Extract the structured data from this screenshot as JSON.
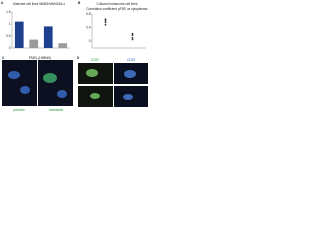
{
  "chart_data": [
    {
      "type": "bar",
      "panel": "A",
      "title": "Matched cell lines WM51/WM4264-4",
      "categories": [
        null,
        null,
        null,
        null
      ],
      "values": [
        1.1,
        0.35,
        0.9,
        0.2
      ],
      "colors": [
        "#1f3f8f",
        "#9a9a9a",
        "#1f3f8f",
        "#9a9a9a"
      ],
      "ylim": [
        0,
        1.5
      ],
      "yticks": [
        0,
        0.5,
        1,
        1.5
      ]
    },
    {
      "type": "scatter",
      "panel": "B",
      "title": "Cultured melanoma cell lines",
      "subtitle": "Correlation coefficient pPDE vs cytoplasmic",
      "x": [
        1,
        1,
        1,
        1,
        2,
        2,
        2,
        2
      ],
      "values": [
        0.55,
        0.6,
        0.48,
        0.65,
        0.1,
        0.18,
        0.05,
        0.22
      ],
      "color": "#333333",
      "xlim": [
        0.5,
        2.5
      ],
      "ylim": [
        -0.2,
        0.8
      ],
      "yticks": [
        0,
        0.4,
        0.8
      ]
    }
  ],
  "images": {
    "panel_c": "C",
    "panel_d": "D",
    "stain": "PMEL (HMB45)",
    "left_label": "primitive",
    "right_label": "metastatic",
    "marker_1": "CD37",
    "marker_2": "CD29"
  }
}
